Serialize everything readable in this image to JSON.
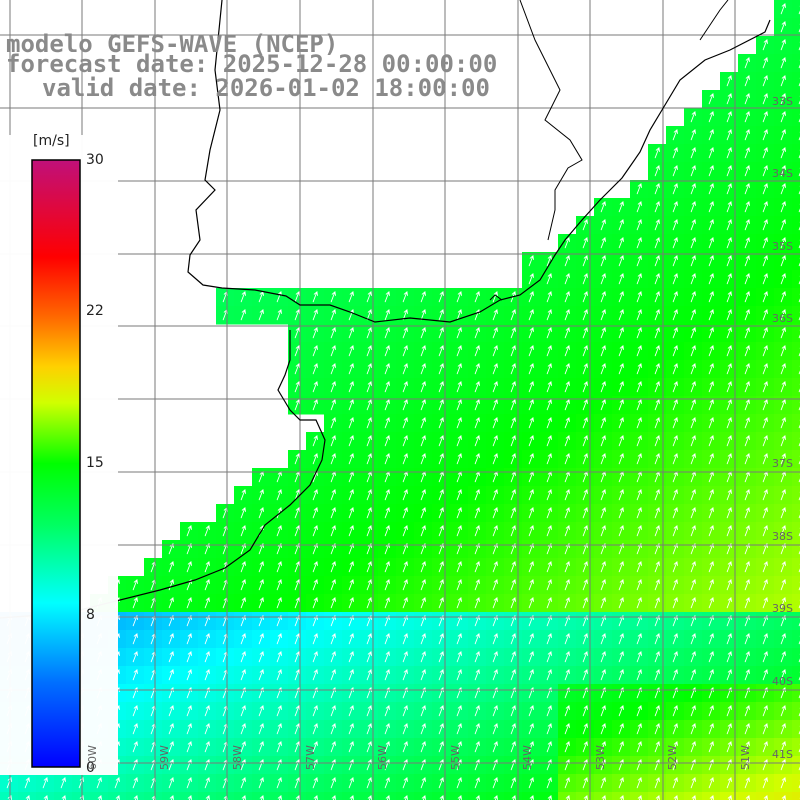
{
  "title": {
    "line1": "modelo GEFS-WAVE (NCEP)",
    "line2": "forecast date: 2025-12-28 00:00:00",
    "line3": "valid date: 2026-01-02 18:00:00"
  },
  "colorbar": {
    "unit": "[m/s]",
    "ticks": [
      "30",
      "22",
      "15",
      "8",
      "0"
    ],
    "tick_values": [
      30,
      22,
      15,
      8,
      0
    ],
    "range": [
      0,
      30
    ],
    "colors": [
      "#0000ff",
      "#0090ff",
      "#00ffff",
      "#00ff00",
      "#ffff00",
      "#ff8000",
      "#ff0000",
      "#c0107a"
    ]
  },
  "lat_labels": [
    "33S",
    "34S",
    "35S",
    "36S",
    "37S",
    "38S",
    "39S",
    "40S",
    "41S"
  ],
  "lon_labels": [
    "60W",
    "59W",
    "58W",
    "57W",
    "56W",
    "55W",
    "54W",
    "53W",
    "52W",
    "51W"
  ],
  "field": {
    "variable": "wind speed",
    "units": "m/s",
    "arrow_direction": "toward north-east",
    "colors": {
      "land": "#ffffff",
      "coast": "#000000",
      "grid": "#7a7a7a"
    }
  }
}
